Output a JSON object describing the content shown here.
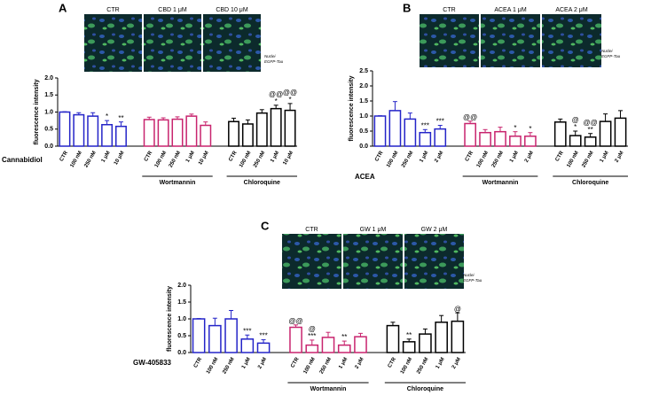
{
  "chart_data": [
    {
      "type": "bar",
      "panel": "A",
      "image_labels": [
        "CTR",
        "CBD 1 μM",
        "CBD 10 μM"
      ],
      "legend": [
        "Nuclei",
        "EGFP-Tau"
      ],
      "ylabel": "fluorescence intensity",
      "ylim": [
        0,
        2.0
      ],
      "yticks": [
        {
          "value": 0,
          "label": "0.0"
        },
        {
          "value": 0.5,
          "label": "0.5"
        },
        {
          "value": 1.0,
          "label": "1.0"
        },
        {
          "value": 1.5,
          "label": "1.5"
        },
        {
          "value": 2.0,
          "label": "2.0"
        }
      ],
      "series": [
        {
          "name": "Cannabidiol",
          "color": "#2424c8",
          "categories": [
            "CTR",
            "100 nM",
            "250 nM",
            "1 μM",
            "10 μM"
          ],
          "values": [
            1.0,
            0.92,
            0.88,
            0.63,
            0.58
          ],
          "errors": [
            0.01,
            0.06,
            0.1,
            0.12,
            0.13
          ],
          "sig": [
            null,
            null,
            null,
            [
              {
                "text": "*",
                "color": "#2424c8"
              }
            ],
            [
              {
                "text": "**",
                "color": "#2424c8"
              }
            ]
          ]
        },
        {
          "name": "Wortmannin",
          "color": "#c8246e",
          "categories": [
            "CTR",
            "100 nM",
            "250 nM",
            "1 μM",
            "10 μM"
          ],
          "values": [
            0.78,
            0.77,
            0.79,
            0.88,
            0.61
          ],
          "errors": [
            0.07,
            0.06,
            0.07,
            0.06,
            0.1
          ],
          "sig": [
            null,
            null,
            null,
            null,
            null
          ]
        },
        {
          "name": "Chloroquine",
          "color": "#000000",
          "categories": [
            "CTR",
            "100 nM",
            "250 nM",
            "1 μM",
            "10 μM"
          ],
          "values": [
            0.72,
            0.65,
            0.97,
            1.1,
            1.05
          ],
          "errors": [
            0.1,
            0.12,
            0.1,
            0.1,
            0.2
          ],
          "sig": [
            null,
            null,
            null,
            [
              {
                "text": "*",
                "color": "#000000"
              },
              {
                "text": "@@",
                "color": "#2424c8"
              }
            ],
            [
              {
                "text": "*",
                "color": "#000000"
              },
              {
                "text": "@@",
                "color": "#2424c8"
              }
            ]
          ]
        }
      ]
    },
    {
      "type": "bar",
      "panel": "B",
      "image_labels": [
        "CTR",
        "ACEA 1 μM",
        "ACEA 2 μM"
      ],
      "legend": [
        "Nuclei",
        "EGFP-Tau"
      ],
      "ylabel": "fluorescence intensity",
      "ylim": [
        0,
        2.5
      ],
      "yticks": [
        {
          "value": 0,
          "label": "0.0"
        },
        {
          "value": 0.5,
          "label": "0.5"
        },
        {
          "value": 1.0,
          "label": "1.0"
        },
        {
          "value": 1.5,
          "label": "1.5"
        },
        {
          "value": 2.0,
          "label": "2.0"
        },
        {
          "value": 2.5,
          "label": "2.5"
        }
      ],
      "series": [
        {
          "name": "ACEA",
          "color": "#2424c8",
          "categories": [
            "CTR",
            "100 nM",
            "250 nM",
            "1 μM",
            "2 μM"
          ],
          "values": [
            1.0,
            1.18,
            0.9,
            0.45,
            0.57
          ],
          "errors": [
            0.01,
            0.3,
            0.2,
            0.1,
            0.12
          ],
          "sig": [
            null,
            null,
            null,
            [
              {
                "text": "***",
                "color": "#2424c8"
              }
            ],
            [
              {
                "text": "***",
                "color": "#2424c8"
              }
            ]
          ]
        },
        {
          "name": "Wortmannin",
          "color": "#c8246e",
          "categories": [
            "CTR",
            "100 nM",
            "250 nM",
            "1 μM",
            "2 μM"
          ],
          "values": [
            0.75,
            0.45,
            0.48,
            0.33,
            0.33
          ],
          "errors": [
            0.08,
            0.1,
            0.15,
            0.15,
            0.12
          ],
          "sig": [
            [
              {
                "text": "@@",
                "color": "#2424c8"
              }
            ],
            null,
            null,
            [
              {
                "text": "*",
                "color": "#c8246e"
              }
            ],
            [
              {
                "text": "*",
                "color": "#c8246e"
              }
            ]
          ]
        },
        {
          "name": "Chloroquine",
          "color": "#000000",
          "categories": [
            "CTR",
            "100 nM",
            "250 nM",
            "1 μM",
            "2 μM"
          ],
          "values": [
            0.8,
            0.35,
            0.3,
            0.82,
            0.93
          ],
          "errors": [
            0.1,
            0.15,
            0.12,
            0.25,
            0.25
          ],
          "sig": [
            null,
            [
              {
                "text": "*",
                "color": "#000000"
              },
              {
                "text": "@",
                "color": "#2424c8"
              }
            ],
            [
              {
                "text": "**",
                "color": "#000000"
              },
              {
                "text": "@@",
                "color": "#2424c8"
              }
            ],
            null,
            null
          ]
        }
      ]
    },
    {
      "type": "bar",
      "panel": "C",
      "image_labels": [
        "CTR",
        "GW 1 μM",
        "GW 2 μM"
      ],
      "legend": [
        "Nuclei",
        "EGFP-Tau"
      ],
      "ylabel": "fluorescence intensity",
      "ylim": [
        0,
        2.0
      ],
      "yticks": [
        {
          "value": 0,
          "label": "0.0"
        },
        {
          "value": 0.5,
          "label": "0.5"
        },
        {
          "value": 1.0,
          "label": "1.0"
        },
        {
          "value": 1.5,
          "label": "1.5"
        },
        {
          "value": 2.0,
          "label": "2.0"
        }
      ],
      "series": [
        {
          "name": "GW-405833",
          "color": "#2424c8",
          "categories": [
            "CTR",
            "100 nM",
            "250 nM",
            "1 μM",
            "2 μM"
          ],
          "values": [
            1.0,
            0.8,
            1.0,
            0.4,
            0.28
          ],
          "errors": [
            0.01,
            0.22,
            0.25,
            0.12,
            0.1
          ],
          "sig": [
            null,
            null,
            null,
            [
              {
                "text": "***",
                "color": "#2424c8"
              }
            ],
            [
              {
                "text": "***",
                "color": "#2424c8"
              }
            ]
          ]
        },
        {
          "name": "Wortmannin",
          "color": "#c8246e",
          "categories": [
            "CTR",
            "100 nM",
            "250 nM",
            "1 μM",
            "2 μM"
          ],
          "values": [
            0.75,
            0.22,
            0.45,
            0.22,
            0.47
          ],
          "errors": [
            0.07,
            0.15,
            0.15,
            0.12,
            0.1
          ],
          "sig": [
            [
              {
                "text": "@@",
                "color": "#2424c8"
              }
            ],
            [
              {
                "text": "***",
                "color": "#c8246e"
              },
              {
                "text": "@",
                "color": "#2424c8"
              }
            ],
            null,
            [
              {
                "text": "**",
                "color": "#c8246e"
              }
            ],
            null
          ]
        },
        {
          "name": "Chloroquine",
          "color": "#000000",
          "categories": [
            "CTR",
            "100 nM",
            "250 nM",
            "1 μM",
            "2 μM"
          ],
          "values": [
            0.8,
            0.32,
            0.55,
            0.9,
            0.93
          ],
          "errors": [
            0.1,
            0.08,
            0.15,
            0.2,
            0.25
          ],
          "sig": [
            null,
            [
              {
                "text": "**",
                "color": "#000000"
              }
            ],
            null,
            null,
            [
              {
                "text": "@",
                "color": "#2424c8"
              }
            ]
          ]
        }
      ]
    }
  ]
}
